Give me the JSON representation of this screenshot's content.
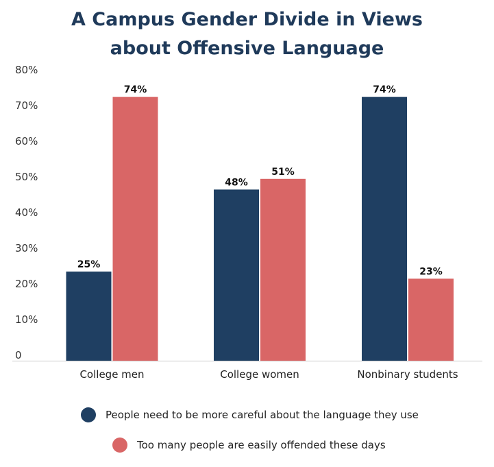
{
  "title": "A Campus Gender Divide in Views about Offensive Language",
  "chart_data": {
    "type": "bar",
    "title": "A Campus Gender Divide in Views about Offensive Language",
    "categories": [
      "College men",
      "College women",
      "Nonbinary students"
    ],
    "series": [
      {
        "name": "People need to be more careful about the language they use",
        "values": [
          25,
          48,
          74
        ],
        "labels": [
          "25%",
          "48%",
          "74%"
        ],
        "color": "#1f3f62"
      },
      {
        "name": "Too many people are easily offended these days",
        "values": [
          74,
          51,
          23
        ],
        "labels": [
          "74%",
          "51%",
          "23%"
        ],
        "color": "#d96666"
      }
    ],
    "yticks": [
      "0",
      "10%",
      "20%",
      "30%",
      "40%",
      "50%",
      "60%",
      "70%",
      "80%"
    ],
    "ylim": [
      0,
      80
    ],
    "grid": false,
    "legend_position": "bottom"
  }
}
